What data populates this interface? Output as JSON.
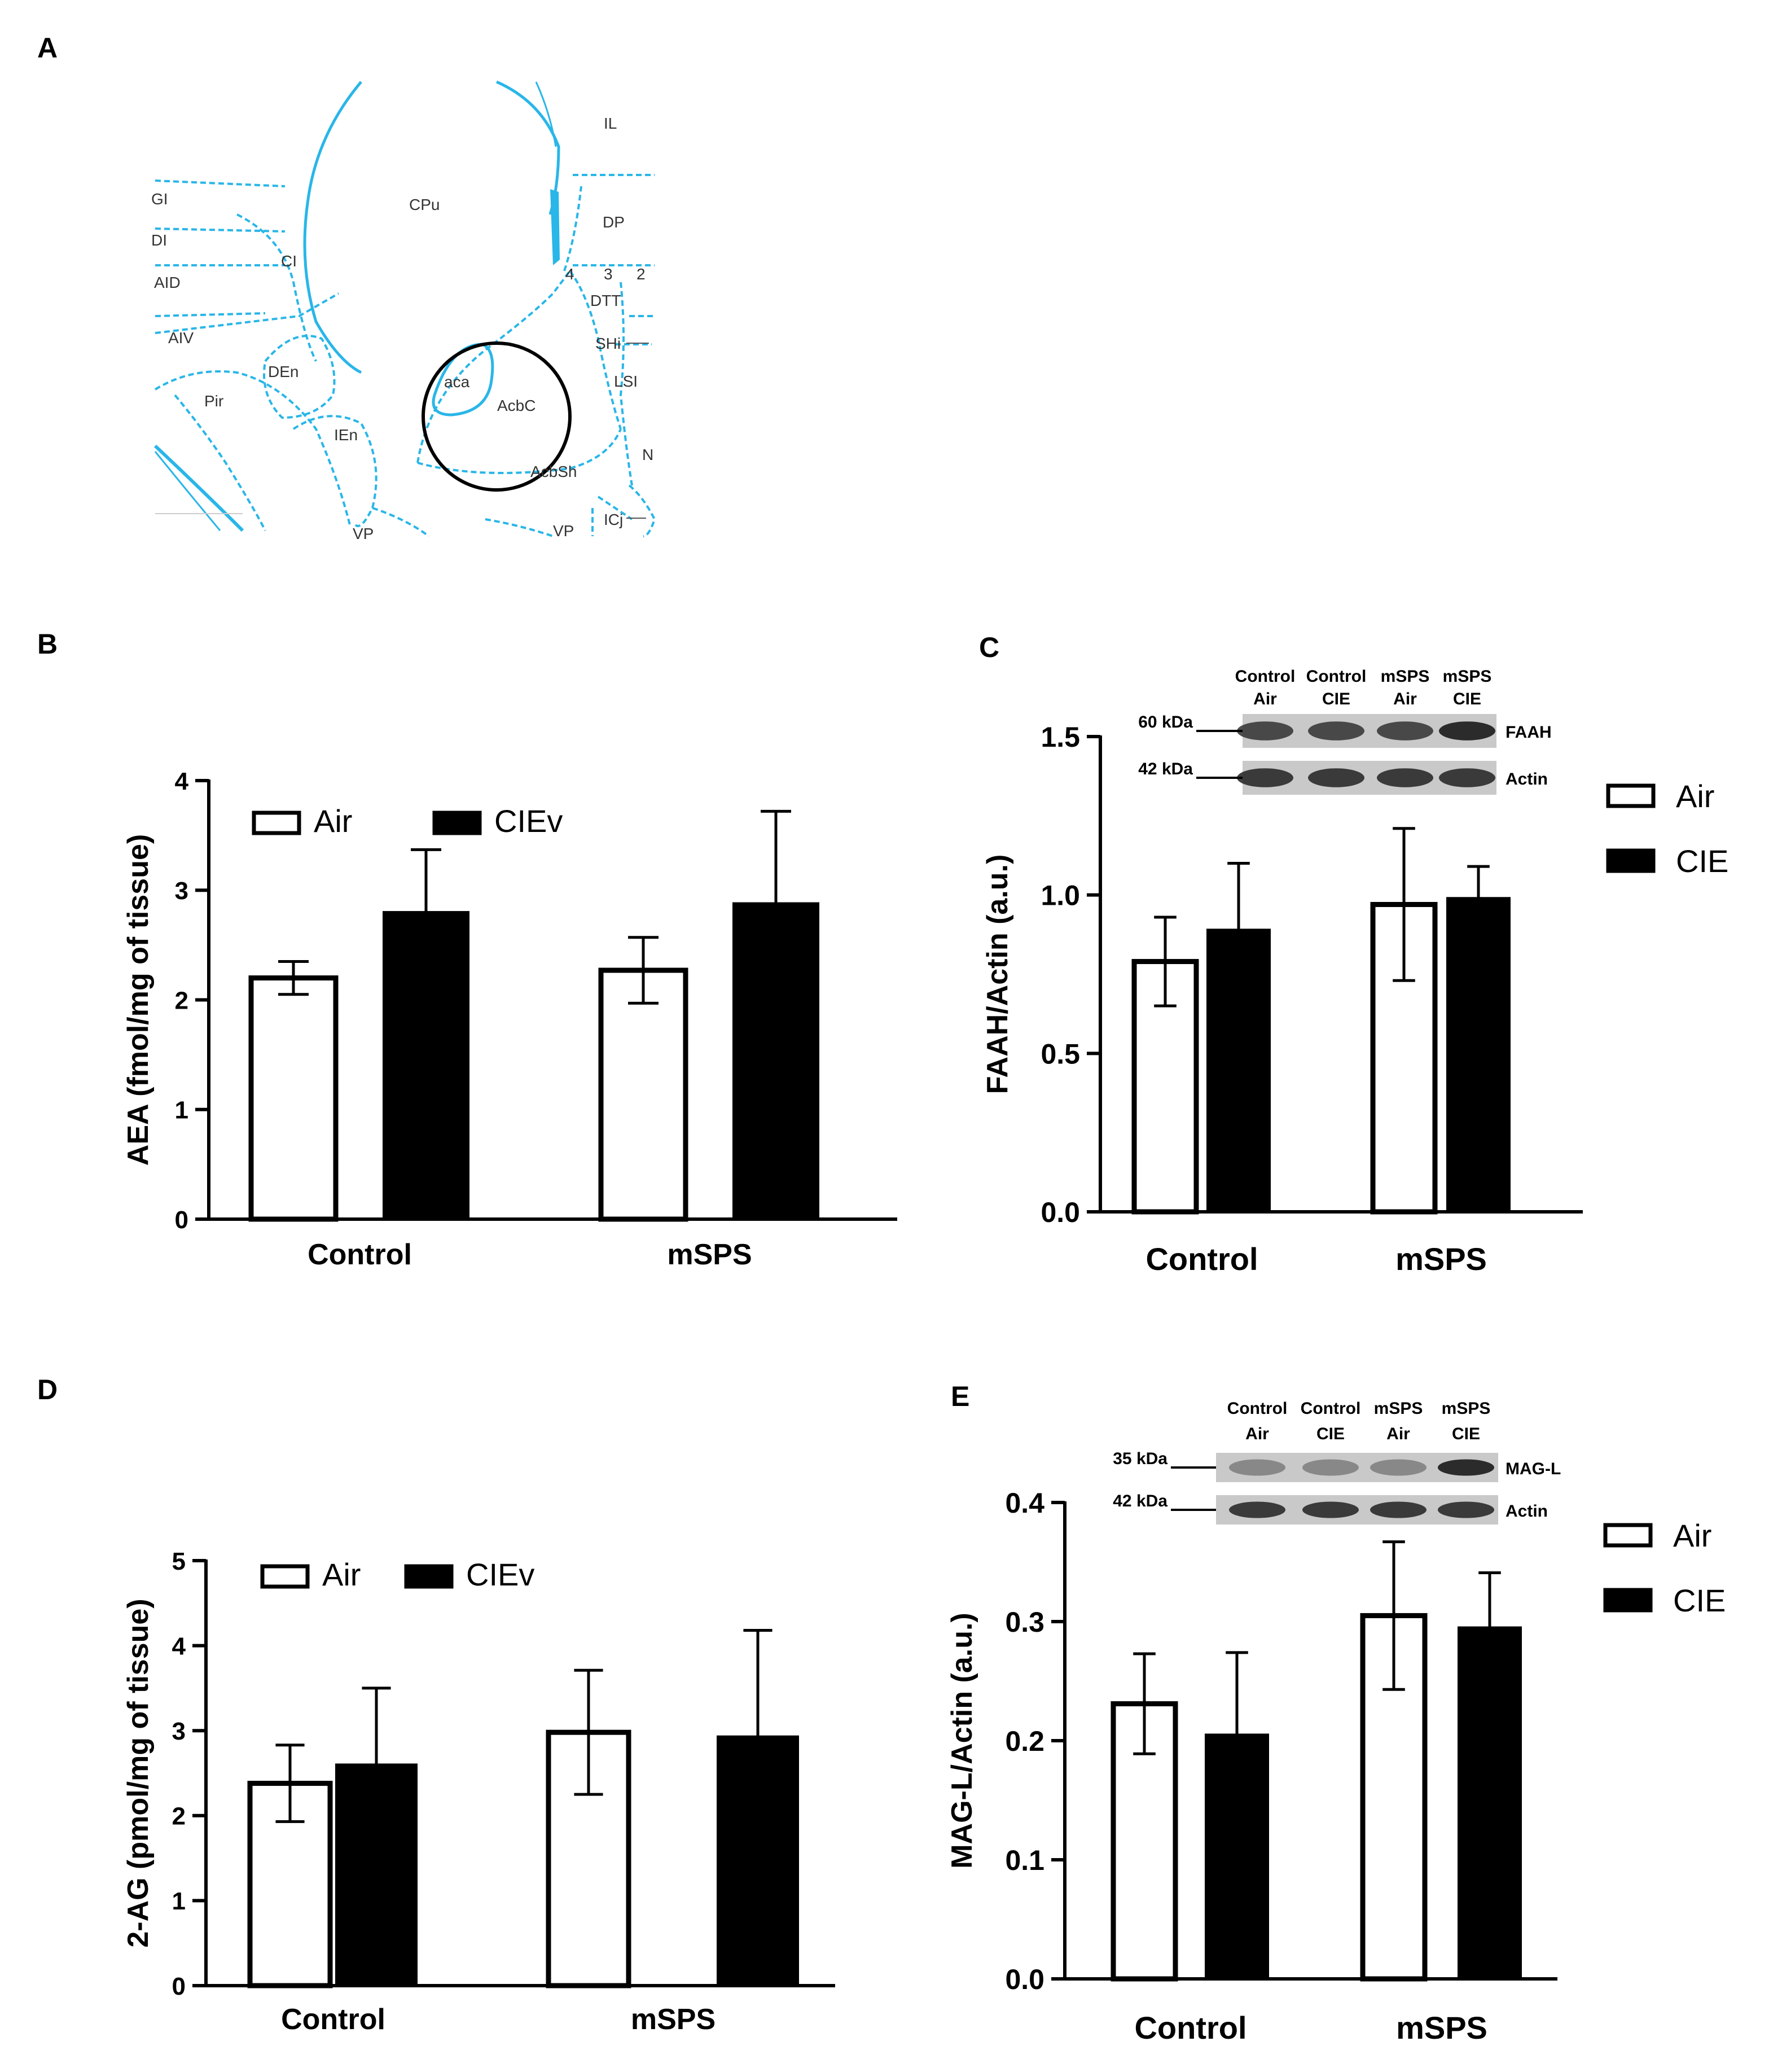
{
  "panel_labels": {
    "A": "A",
    "B": "B",
    "C": "C",
    "D": "D",
    "E": "E"
  },
  "atlas": {
    "colors": {
      "line": "#29B6E8",
      "circle": "#000000"
    },
    "region_labels": [
      "IL",
      "CPu",
      "GI",
      "DP",
      "DI",
      "CI",
      "AID",
      "4",
      "3",
      "2",
      "DTT",
      "AIV",
      "SHi",
      "DEn",
      "aca",
      "LSI",
      "Pir",
      "AcbC",
      "IEn",
      "N",
      "AcbSh",
      "ICj",
      "VP",
      "VP"
    ]
  },
  "colors": {
    "filled": "#000000",
    "open": "#ffffff",
    "axis": "#000000"
  },
  "chart_data": [
    {
      "id": "B",
      "type": "bar",
      "ylabel": "AEA (fmol/mg of tissue)",
      "categories": [
        "Control",
        "mSPS"
      ],
      "ylim": [
        0,
        4
      ],
      "yticks": [
        "0",
        "1",
        "2",
        "3",
        "4"
      ],
      "legend": {
        "placement": "top-left",
        "entries": [
          "Air",
          "CIEv"
        ]
      },
      "series": [
        {
          "name": "Air",
          "values": [
            2.2,
            2.27
          ],
          "errors": [
            0.15,
            0.3
          ]
        },
        {
          "name": "CIEv",
          "values": [
            2.8,
            2.88
          ],
          "errors": [
            0.57,
            0.84
          ]
        }
      ]
    },
    {
      "id": "C",
      "type": "bar",
      "ylabel": "FAAH/Actin (a.u.)",
      "categories": [
        "Control",
        "mSPS"
      ],
      "ylim": [
        0,
        1.5
      ],
      "yticks": [
        "0.0",
        "0.5",
        "1.0",
        "1.5"
      ],
      "legend": {
        "placement": "right",
        "entries": [
          "Air",
          "CIE"
        ]
      },
      "series": [
        {
          "name": "Air",
          "values": [
            0.79,
            0.97
          ],
          "errors": [
            0.14,
            0.24
          ]
        },
        {
          "name": "CIE",
          "values": [
            0.89,
            0.99
          ],
          "errors": [
            0.21,
            0.1
          ]
        }
      ],
      "blot": {
        "lanes": [
          [
            "Control",
            "Air"
          ],
          [
            "Control",
            "CIE"
          ],
          [
            "mSPS",
            "Air"
          ],
          [
            "mSPS",
            "CIE"
          ]
        ],
        "rows": [
          {
            "kda": "60 kDa",
            "protein": "FAAH"
          },
          {
            "kda": "42 kDa",
            "protein": "Actin"
          }
        ]
      }
    },
    {
      "id": "D",
      "type": "bar",
      "ylabel": "2-AG (pmol/mg of tissue)",
      "categories": [
        "Control",
        "mSPS"
      ],
      "ylim": [
        0,
        5
      ],
      "yticks": [
        "0",
        "1",
        "2",
        "3",
        "4",
        "5"
      ],
      "legend": {
        "placement": "top-left",
        "entries": [
          "Air",
          "CIEv"
        ]
      },
      "series": [
        {
          "name": "Air",
          "values": [
            2.38,
            2.98
          ],
          "errors": [
            0.45,
            0.73
          ]
        },
        {
          "name": "CIEv",
          "values": [
            2.6,
            2.93
          ],
          "errors": [
            0.9,
            1.25
          ]
        }
      ]
    },
    {
      "id": "E",
      "type": "bar",
      "ylabel": "MAG-L/Actin (a.u.)",
      "categories": [
        "Control",
        "mSPS"
      ],
      "ylim": [
        0,
        0.4
      ],
      "yticks": [
        "0.0",
        "0.1",
        "0.2",
        "0.3",
        "0.4"
      ],
      "legend": {
        "placement": "right",
        "entries": [
          "Air",
          "CIE"
        ]
      },
      "series": [
        {
          "name": "Air",
          "values": [
            0.231,
            0.305
          ],
          "errors": [
            0.042,
            0.062
          ]
        },
        {
          "name": "CIE",
          "values": [
            0.205,
            0.295
          ],
          "errors": [
            0.069,
            0.046
          ]
        }
      ],
      "blot": {
        "lanes": [
          [
            "Control",
            "Air"
          ],
          [
            "Control",
            "CIE"
          ],
          [
            "mSPS",
            "Air"
          ],
          [
            "mSPS",
            "CIE"
          ]
        ],
        "rows": [
          {
            "kda": "35 kDa",
            "protein": "MAG-L"
          },
          {
            "kda": "42 kDa",
            "protein": "Actin"
          }
        ]
      }
    }
  ]
}
